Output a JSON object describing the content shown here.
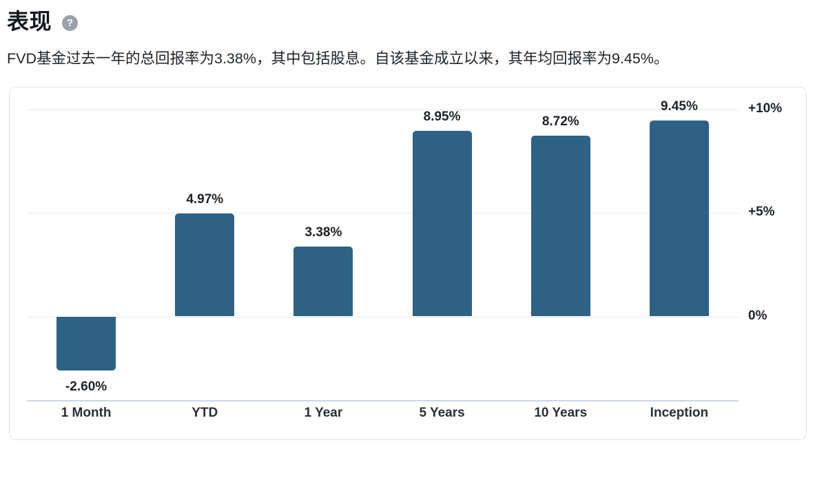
{
  "header": {
    "title": "表现",
    "help_glyph": "?"
  },
  "description": "FVD基金过去一年的总回报率为3.38%，其中包括股息。自该基金成立以来，其年均回报率为9.45%。",
  "chart_data": {
    "type": "bar",
    "title": "",
    "categories": [
      "1 Month",
      "YTD",
      "1 Year",
      "5 Years",
      "10 Years",
      "Inception"
    ],
    "values": [
      -2.6,
      4.97,
      3.38,
      8.95,
      8.72,
      9.45
    ],
    "bar_labels": [
      "-2.60%",
      "4.97%",
      "3.38%",
      "8.95%",
      "8.72%",
      "9.45%"
    ],
    "y_axis": {
      "position": "right",
      "ticks": [
        {
          "value": 10,
          "label": "+10%"
        },
        {
          "value": 5,
          "label": "+5%"
        },
        {
          "value": 0,
          "label": "0%"
        }
      ]
    },
    "ylim": [
      -4.5,
      11
    ],
    "grid": true,
    "legend": false,
    "bar_color": "#2d6286"
  },
  "colors": {
    "bar": "#2d6286",
    "gridline": "#e9e9e9",
    "axis_line": "#c9d5e2",
    "panel_border": "#e2e2e2",
    "text_dark": "#1f2328",
    "help_icon_bg": "#9ba1ac"
  }
}
